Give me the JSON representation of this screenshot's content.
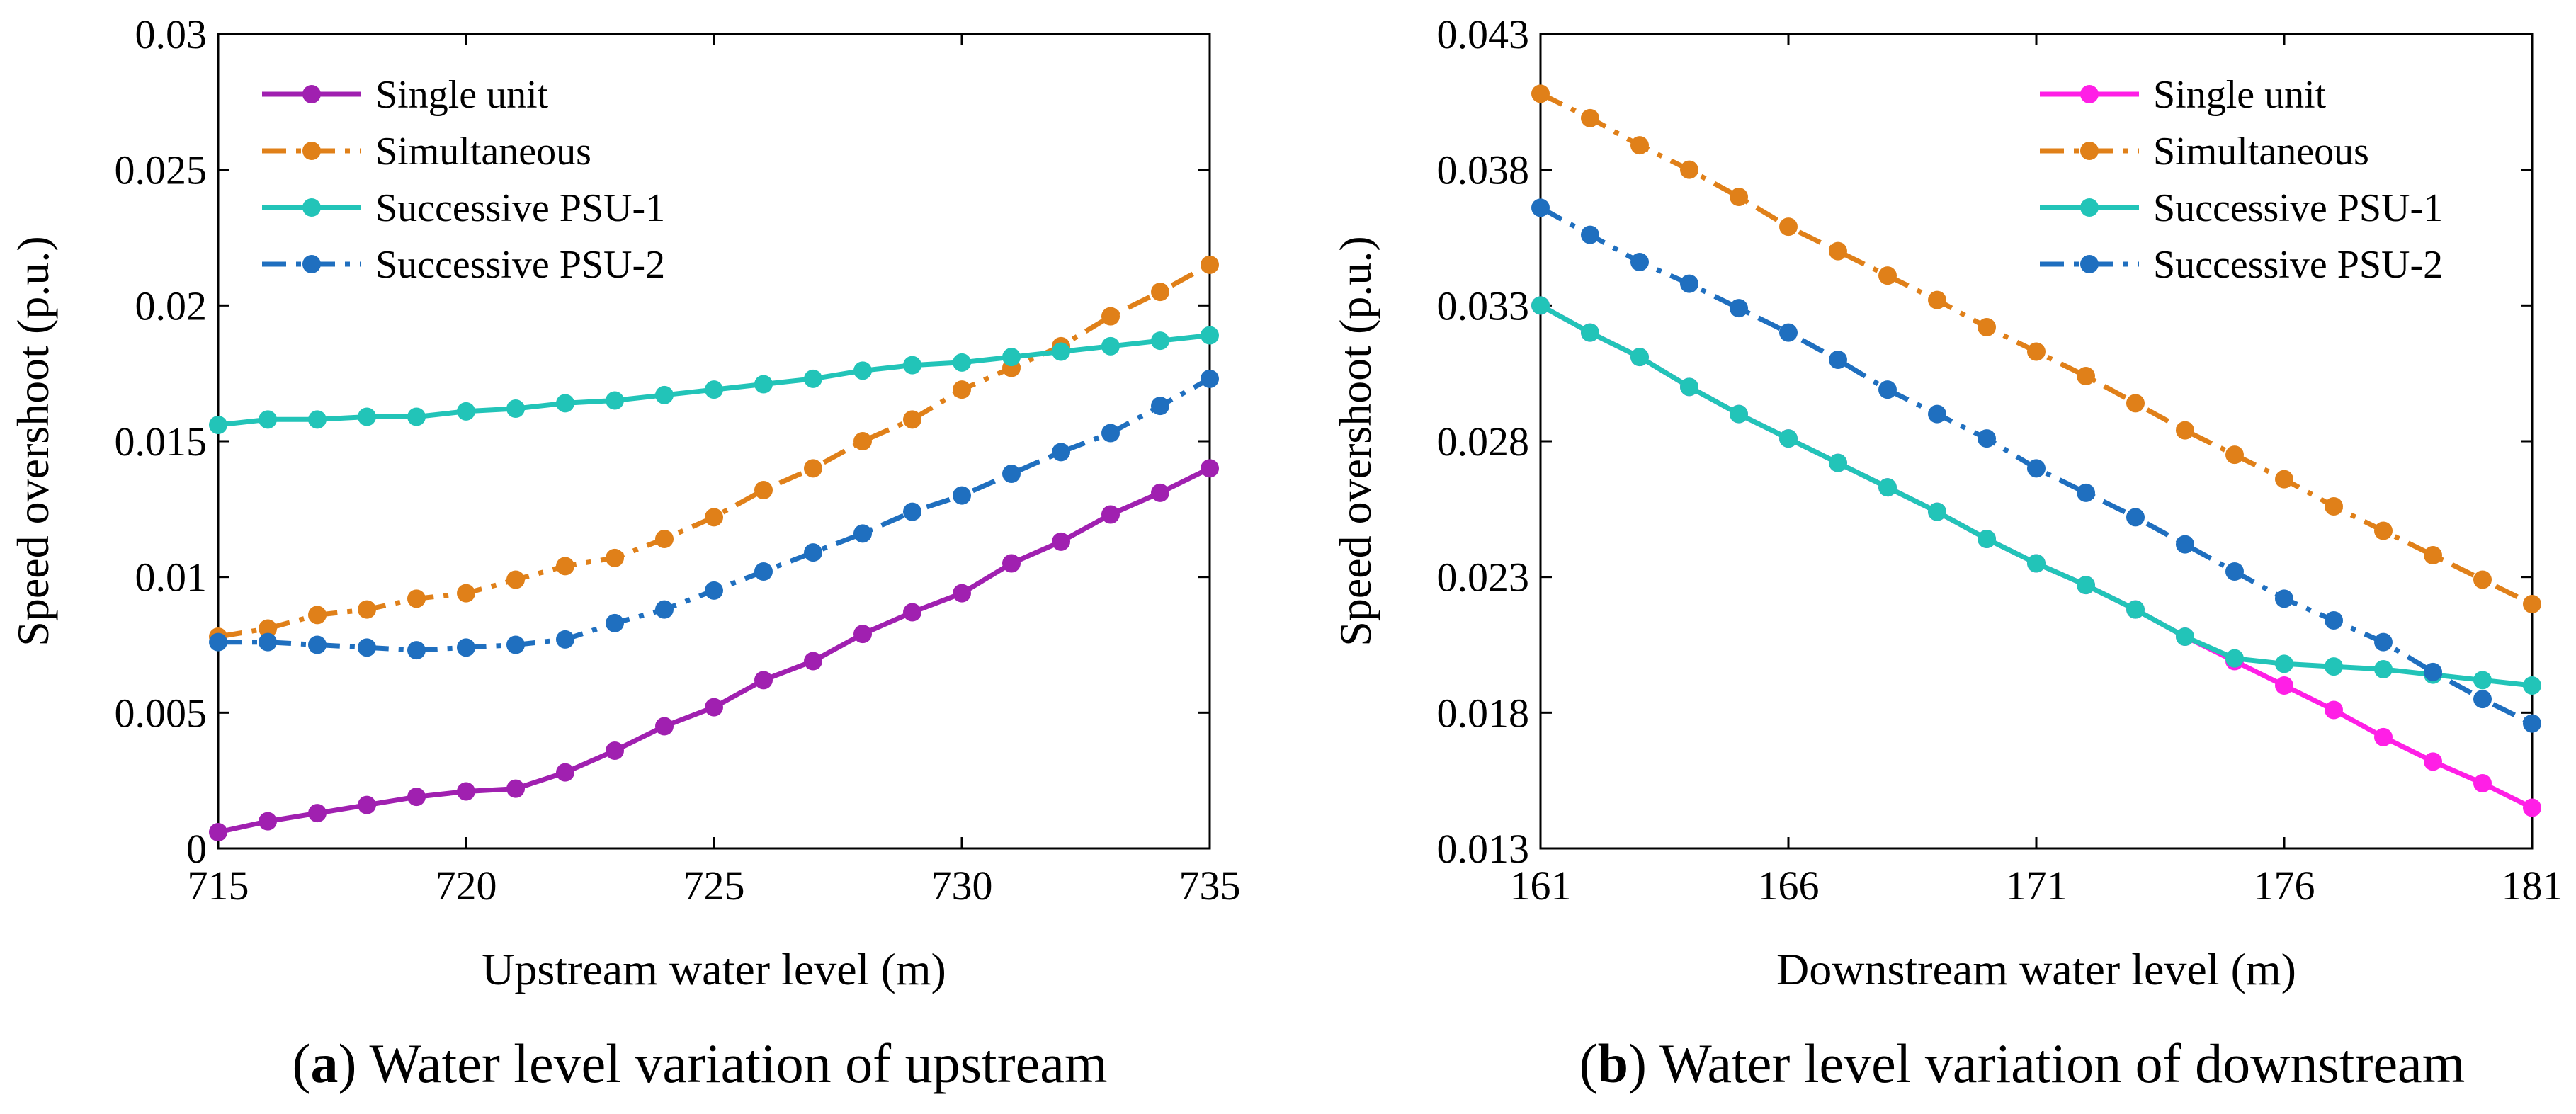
{
  "chart_data": [
    {
      "type": "line",
      "panel_letter": "a",
      "caption": "Water level variation of upstream",
      "xlabel": "Upstream water level (m)",
      "ylabel": "Speed overshoot (p.u.)",
      "xlim": [
        715,
        735
      ],
      "ylim": [
        0,
        0.03
      ],
      "xticks": [
        715,
        720,
        725,
        730,
        735
      ],
      "xtick_labels": [
        "715",
        "720",
        "725",
        "730",
        "735"
      ],
      "yticks": [
        0,
        0.005,
        0.01,
        0.015,
        0.02,
        0.025,
        0.03
      ],
      "ytick_labels": [
        "0",
        "0.005",
        "0.01",
        "0.015",
        "0.02",
        "0.025",
        "0.03"
      ],
      "legend_position": "top-left",
      "x": [
        715,
        716,
        717,
        718,
        719,
        720,
        721,
        722,
        723,
        724,
        725,
        726,
        727,
        728,
        729,
        730,
        731,
        732,
        733,
        734,
        735
      ],
      "series": [
        {
          "name": "Single unit",
          "color": "#a020b0",
          "dash": "solid",
          "values": [
            0.0006,
            0.001,
            0.0013,
            0.0016,
            0.0019,
            0.0021,
            0.0022,
            0.0028,
            0.0036,
            0.0045,
            0.0052,
            0.0062,
            0.0069,
            0.0079,
            0.0087,
            0.0094,
            0.0105,
            0.0113,
            0.0123,
            0.0131,
            0.014
          ]
        },
        {
          "name": "Simultaneous",
          "color": "#e08019",
          "dash": "dashdot",
          "values": [
            0.0078,
            0.0081,
            0.0086,
            0.0088,
            0.0092,
            0.0094,
            0.0099,
            0.0104,
            0.0107,
            0.0114,
            0.0122,
            0.0132,
            0.014,
            0.015,
            0.0158,
            0.0169,
            0.0177,
            0.0185,
            0.0196,
            0.0205,
            0.0215
          ]
        },
        {
          "name": "Successive PSU-1",
          "color": "#22c4b8",
          "dash": "solid",
          "values": [
            0.0156,
            0.0158,
            0.0158,
            0.0159,
            0.0159,
            0.0161,
            0.0162,
            0.0164,
            0.0165,
            0.0167,
            0.0169,
            0.0171,
            0.0173,
            0.0176,
            0.0178,
            0.0179,
            0.0181,
            0.0183,
            0.0185,
            0.0187,
            0.0189
          ]
        },
        {
          "name": "Successive PSU-2",
          "color": "#1f6fbf",
          "dash": "dashdot",
          "values": [
            0.0076,
            0.0076,
            0.0075,
            0.0074,
            0.0073,
            0.0074,
            0.0075,
            0.0077,
            0.0083,
            0.0088,
            0.0095,
            0.0102,
            0.0109,
            0.0116,
            0.0124,
            0.013,
            0.0138,
            0.0146,
            0.0153,
            0.0163,
            0.0173
          ]
        }
      ]
    },
    {
      "type": "line",
      "panel_letter": "b",
      "caption": "Water level variation of downstream",
      "xlabel": "Downstream water level (m)",
      "ylabel": "Speed overshoot (p.u.)",
      "xlim": [
        161,
        181
      ],
      "ylim": [
        0.013,
        0.043
      ],
      "xticks": [
        161,
        166,
        171,
        176,
        181
      ],
      "xtick_labels": [
        "161",
        "166",
        "171",
        "176",
        "181"
      ],
      "yticks": [
        0.013,
        0.018,
        0.023,
        0.028,
        0.033,
        0.038,
        0.043
      ],
      "ytick_labels": [
        "0.013",
        "0.018",
        "0.023",
        "0.028",
        "0.033",
        "0.038",
        "0.043"
      ],
      "legend_position": "top-right",
      "x": [
        161,
        162,
        163,
        164,
        165,
        166,
        167,
        168,
        169,
        170,
        171,
        172,
        173,
        174,
        175,
        176,
        177,
        178,
        179,
        180,
        181
      ],
      "series": [
        {
          "name": "Single unit",
          "color": "#ff1fe6",
          "dash": "solid",
          "values": [
            0.033,
            0.032,
            0.0311,
            0.03,
            0.029,
            0.0281,
            0.0272,
            0.0263,
            0.0254,
            0.0244,
            0.0235,
            0.0227,
            0.0218,
            0.0208,
            0.0199,
            0.019,
            0.0181,
            0.0171,
            0.0162,
            0.0154,
            0.0145
          ]
        },
        {
          "name": "Simultaneous",
          "color": "#e08019",
          "dash": "dashdot",
          "values": [
            0.0408,
            0.0399,
            0.0389,
            0.038,
            0.037,
            0.0359,
            0.035,
            0.0341,
            0.0332,
            0.0322,
            0.0313,
            0.0304,
            0.0294,
            0.0284,
            0.0275,
            0.0266,
            0.0256,
            0.0247,
            0.0238,
            0.0229,
            0.022
          ]
        },
        {
          "name": "Successive PSU-1",
          "color": "#22c4b8",
          "dash": "solid",
          "values": [
            0.033,
            0.032,
            0.0311,
            0.03,
            0.029,
            0.0281,
            0.0272,
            0.0263,
            0.0254,
            0.0244,
            0.0235,
            0.0227,
            0.0218,
            0.0208,
            0.02,
            0.0198,
            0.0197,
            0.0196,
            0.0194,
            0.0192,
            0.019
          ]
        },
        {
          "name": "Successive PSU-2",
          "color": "#1f6fbf",
          "dash": "dashdot",
          "values": [
            0.0366,
            0.0356,
            0.0346,
            0.0338,
            0.0329,
            0.032,
            0.031,
            0.0299,
            0.029,
            0.0281,
            0.027,
            0.0261,
            0.0252,
            0.0242,
            0.0232,
            0.0222,
            0.0214,
            0.0206,
            0.0195,
            0.0185,
            0.0176
          ]
        }
      ]
    }
  ]
}
